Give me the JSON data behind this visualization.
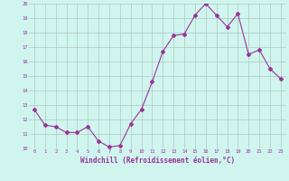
{
  "x": [
    0,
    1,
    2,
    3,
    4,
    5,
    6,
    7,
    8,
    9,
    10,
    11,
    12,
    13,
    14,
    15,
    16,
    17,
    18,
    19,
    20,
    21,
    22,
    23
  ],
  "y": [
    12.7,
    11.6,
    11.5,
    11.1,
    11.1,
    11.5,
    10.5,
    10.1,
    10.2,
    11.7,
    12.7,
    14.6,
    16.7,
    17.8,
    17.9,
    19.2,
    20.0,
    19.2,
    18.4,
    19.3,
    16.5,
    16.8,
    15.5,
    14.8
  ],
  "line_color": "#993399",
  "marker": "D",
  "marker_size": 2,
  "xlabel": "Windchill (Refroidissement éolien,°C)",
  "ylim": [
    10,
    20
  ],
  "yticks": [
    10,
    11,
    12,
    13,
    14,
    15,
    16,
    17,
    18,
    19,
    20
  ],
  "xticks": [
    0,
    1,
    2,
    3,
    4,
    5,
    6,
    7,
    8,
    9,
    10,
    11,
    12,
    13,
    14,
    15,
    16,
    17,
    18,
    19,
    20,
    21,
    22,
    23
  ],
  "bg_color": "#cff5ee",
  "grid_color": "#b0c8c0",
  "tick_color": "#993399",
  "label_color": "#993399"
}
